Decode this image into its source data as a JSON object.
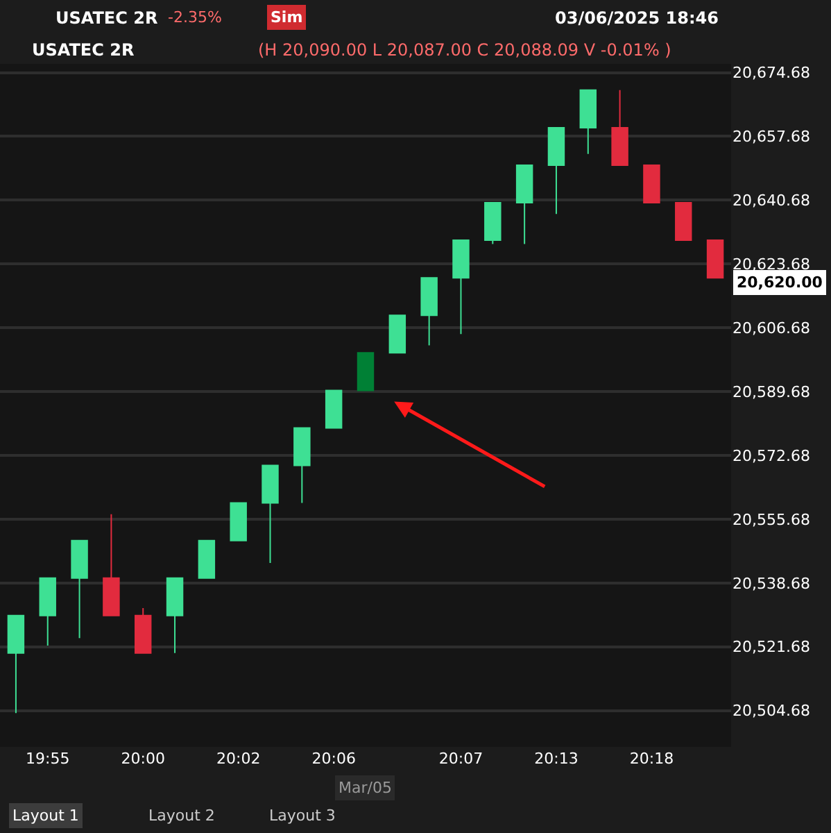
{
  "chart_data": {
    "type": "candlestick",
    "title": "USATEC 2R",
    "categories": [
      null,
      "19:55",
      null,
      null,
      "20:00",
      null,
      null,
      "20:02",
      null,
      null,
      "20:06",
      null,
      null,
      null,
      "20:07",
      null,
      null,
      "20:13",
      null,
      null,
      "20:18",
      null,
      null
    ],
    "ohlc": [
      [
        20520,
        20530,
        20504,
        20530
      ],
      [
        20530,
        20540,
        20522,
        20540
      ],
      [
        20540,
        20550,
        20524,
        20550
      ],
      [
        20540,
        20557,
        20530,
        20530
      ],
      [
        20530,
        20532,
        20520,
        20520
      ],
      [
        20530,
        20540,
        20520,
        20540
      ],
      [
        20540,
        20550,
        20540,
        20550
      ],
      [
        20550,
        20560,
        20550,
        20560
      ],
      [
        20560,
        20570,
        20544,
        20570
      ],
      [
        20570,
        20580,
        20560,
        20580
      ],
      [
        20580,
        20590,
        20580,
        20590
      ],
      [
        20590,
        20600,
        20590,
        20600
      ],
      [
        20600,
        20610,
        20600,
        20610
      ],
      [
        20610,
        20620,
        20602,
        20620
      ],
      [
        20620,
        20630,
        20605,
        20630
      ],
      [
        20630,
        20640,
        20629,
        20640
      ],
      [
        20640,
        20650,
        20629,
        20650
      ],
      [
        20650,
        20660,
        20637,
        20660
      ],
      [
        20660,
        20670,
        20653,
        20670
      ],
      [
        20660,
        20670,
        20650,
        20650
      ],
      [
        20650,
        20650,
        20640,
        20640
      ],
      [
        20640,
        20640,
        20630,
        20630
      ],
      [
        20630,
        20630,
        20620,
        20620
      ]
    ],
    "colors": [
      "#3ee094",
      "#3ee094",
      "#3ee094",
      "#e22b3e",
      "#e22b3e",
      "#3ee094",
      "#3ee094",
      "#3ee094",
      "#3ee094",
      "#3ee094",
      "#3ee094",
      "#008035",
      "#3ee094",
      "#3ee094",
      "#3ee094",
      "#3ee094",
      "#3ee094",
      "#3ee094",
      "#3ee094",
      "#e22b3e",
      "#e22b3e",
      "#e22b3e",
      "#e22b3e"
    ],
    "ylim": [
      20495,
      20677
    ],
    "yticks": [
      {
        "value": 20504.68,
        "label": "20,504.68"
      },
      {
        "value": 20521.68,
        "label": "20,521.68"
      },
      {
        "value": 20538.68,
        "label": "20,538.68"
      },
      {
        "value": 20555.68,
        "label": "20,555.68"
      },
      {
        "value": 20572.68,
        "label": "20,572.68"
      },
      {
        "value": 20589.68,
        "label": "20,589.68"
      },
      {
        "value": 20606.68,
        "label": "20,606.68"
      },
      {
        "value": 20623.68,
        "label": "20,623.68"
      },
      {
        "value": 20640.68,
        "label": "20,640.68"
      },
      {
        "value": 20657.68,
        "label": "20,657.68"
      },
      {
        "value": 20674.68,
        "label": "20,674.68"
      }
    ],
    "grid": "y",
    "annotations": [
      "-2.35%",
      "Sim",
      "03/06/2025 18:46",
      "USATEC 2R",
      "(H 20,090.00 L 20,087.00 C 20,088.09 V -0.01% )",
      "Mar/05",
      "Layout 1",
      "Layout 2",
      "Layout 3",
      "20,620.00"
    ]
  }
}
